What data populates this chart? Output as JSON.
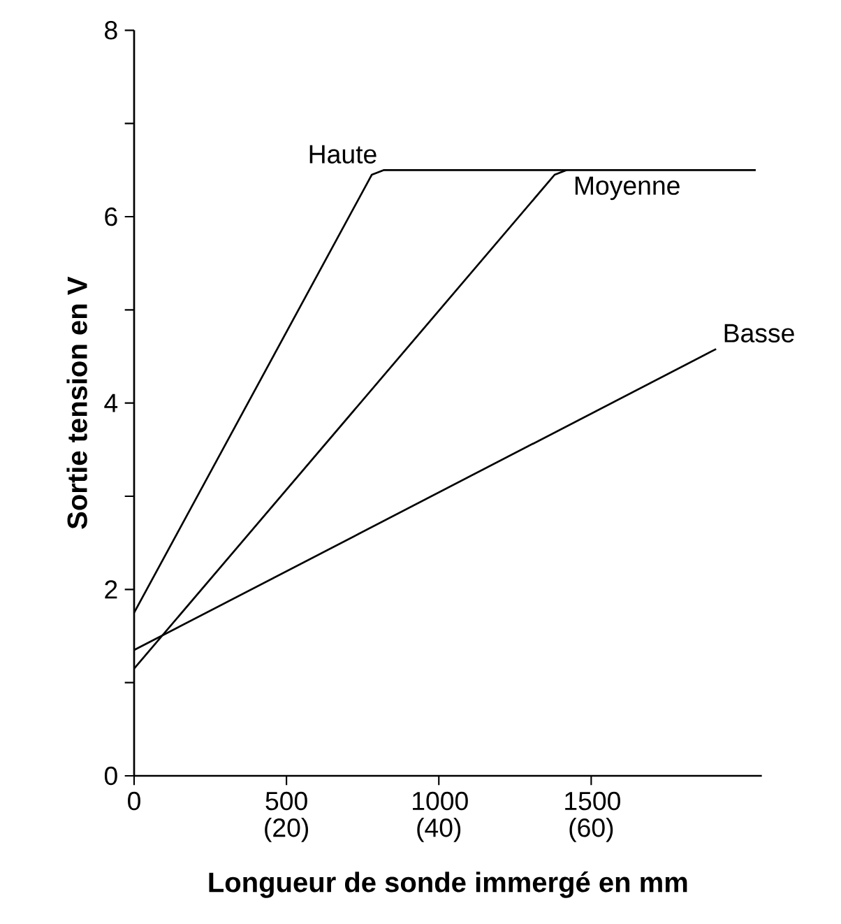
{
  "chart_data": {
    "type": "line",
    "xlabel": "Longueur de sonde immergé en mm",
    "ylabel": "Sortie tension en V",
    "xlim": [
      0,
      2060
    ],
    "ylim": [
      0,
      8
    ],
    "xticks": [
      0,
      500,
      1000,
      1500
    ],
    "x2lim": [
      0,
      82.4
    ],
    "x2ticks": [
      {
        "value": 20,
        "label": "(20)"
      },
      {
        "value": 40,
        "label": "(40)"
      },
      {
        "value": 60,
        "label": "(60)"
      }
    ],
    "yticks": [
      0,
      {
        "value": 1,
        "label": null
      },
      2,
      {
        "value": 3,
        "label": null
      },
      4,
      {
        "value": 5,
        "label": null
      },
      6,
      {
        "value": 7,
        "label": null
      },
      8
    ],
    "grid": false,
    "marker": "none",
    "line_style": "solid",
    "series": [
      {
        "name": "Haute",
        "color": "#000000",
        "x": [
          0,
          780,
          820,
          2040
        ],
        "values": [
          1.75,
          6.45,
          6.5,
          6.5
        ]
      },
      {
        "name": "Moyenne",
        "color": "#000000",
        "x": [
          0,
          1380,
          1420
        ],
        "values": [
          1.15,
          6.45,
          6.5
        ]
      },
      {
        "name": "Basse",
        "color": "#000000",
        "x": [
          0,
          1910
        ],
        "values": [
          1.35,
          4.58
        ]
      }
    ]
  }
}
